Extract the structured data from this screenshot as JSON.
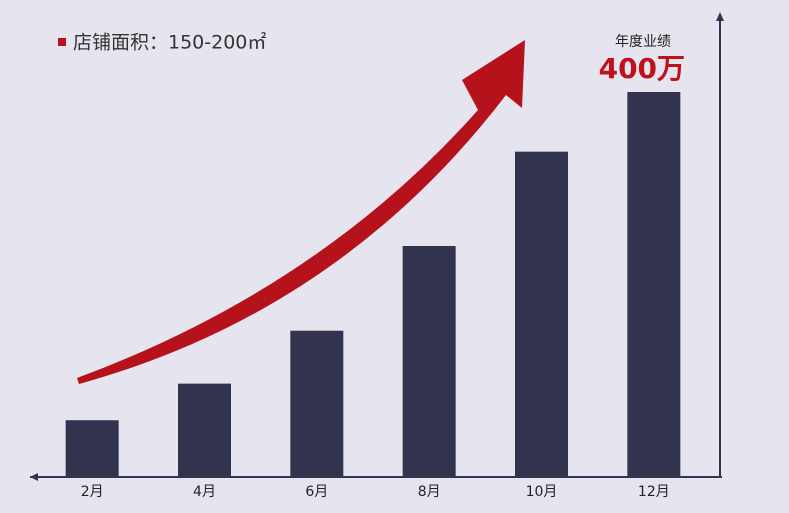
{
  "chart_data": {
    "type": "bar",
    "subtitle": "店铺面积：150-200㎡",
    "annotation": "年度业绩",
    "categories": [
      "2月",
      "4月",
      "6月",
      "8月",
      "10月",
      "12月"
    ],
    "values": [
      59,
      97,
      152,
      240,
      338,
      400
    ],
    "value_labels": [
      null,
      null,
      null,
      null,
      null,
      "400万"
    ],
    "color": "#32344f",
    "ylim": [
      0,
      480
    ]
  }
}
